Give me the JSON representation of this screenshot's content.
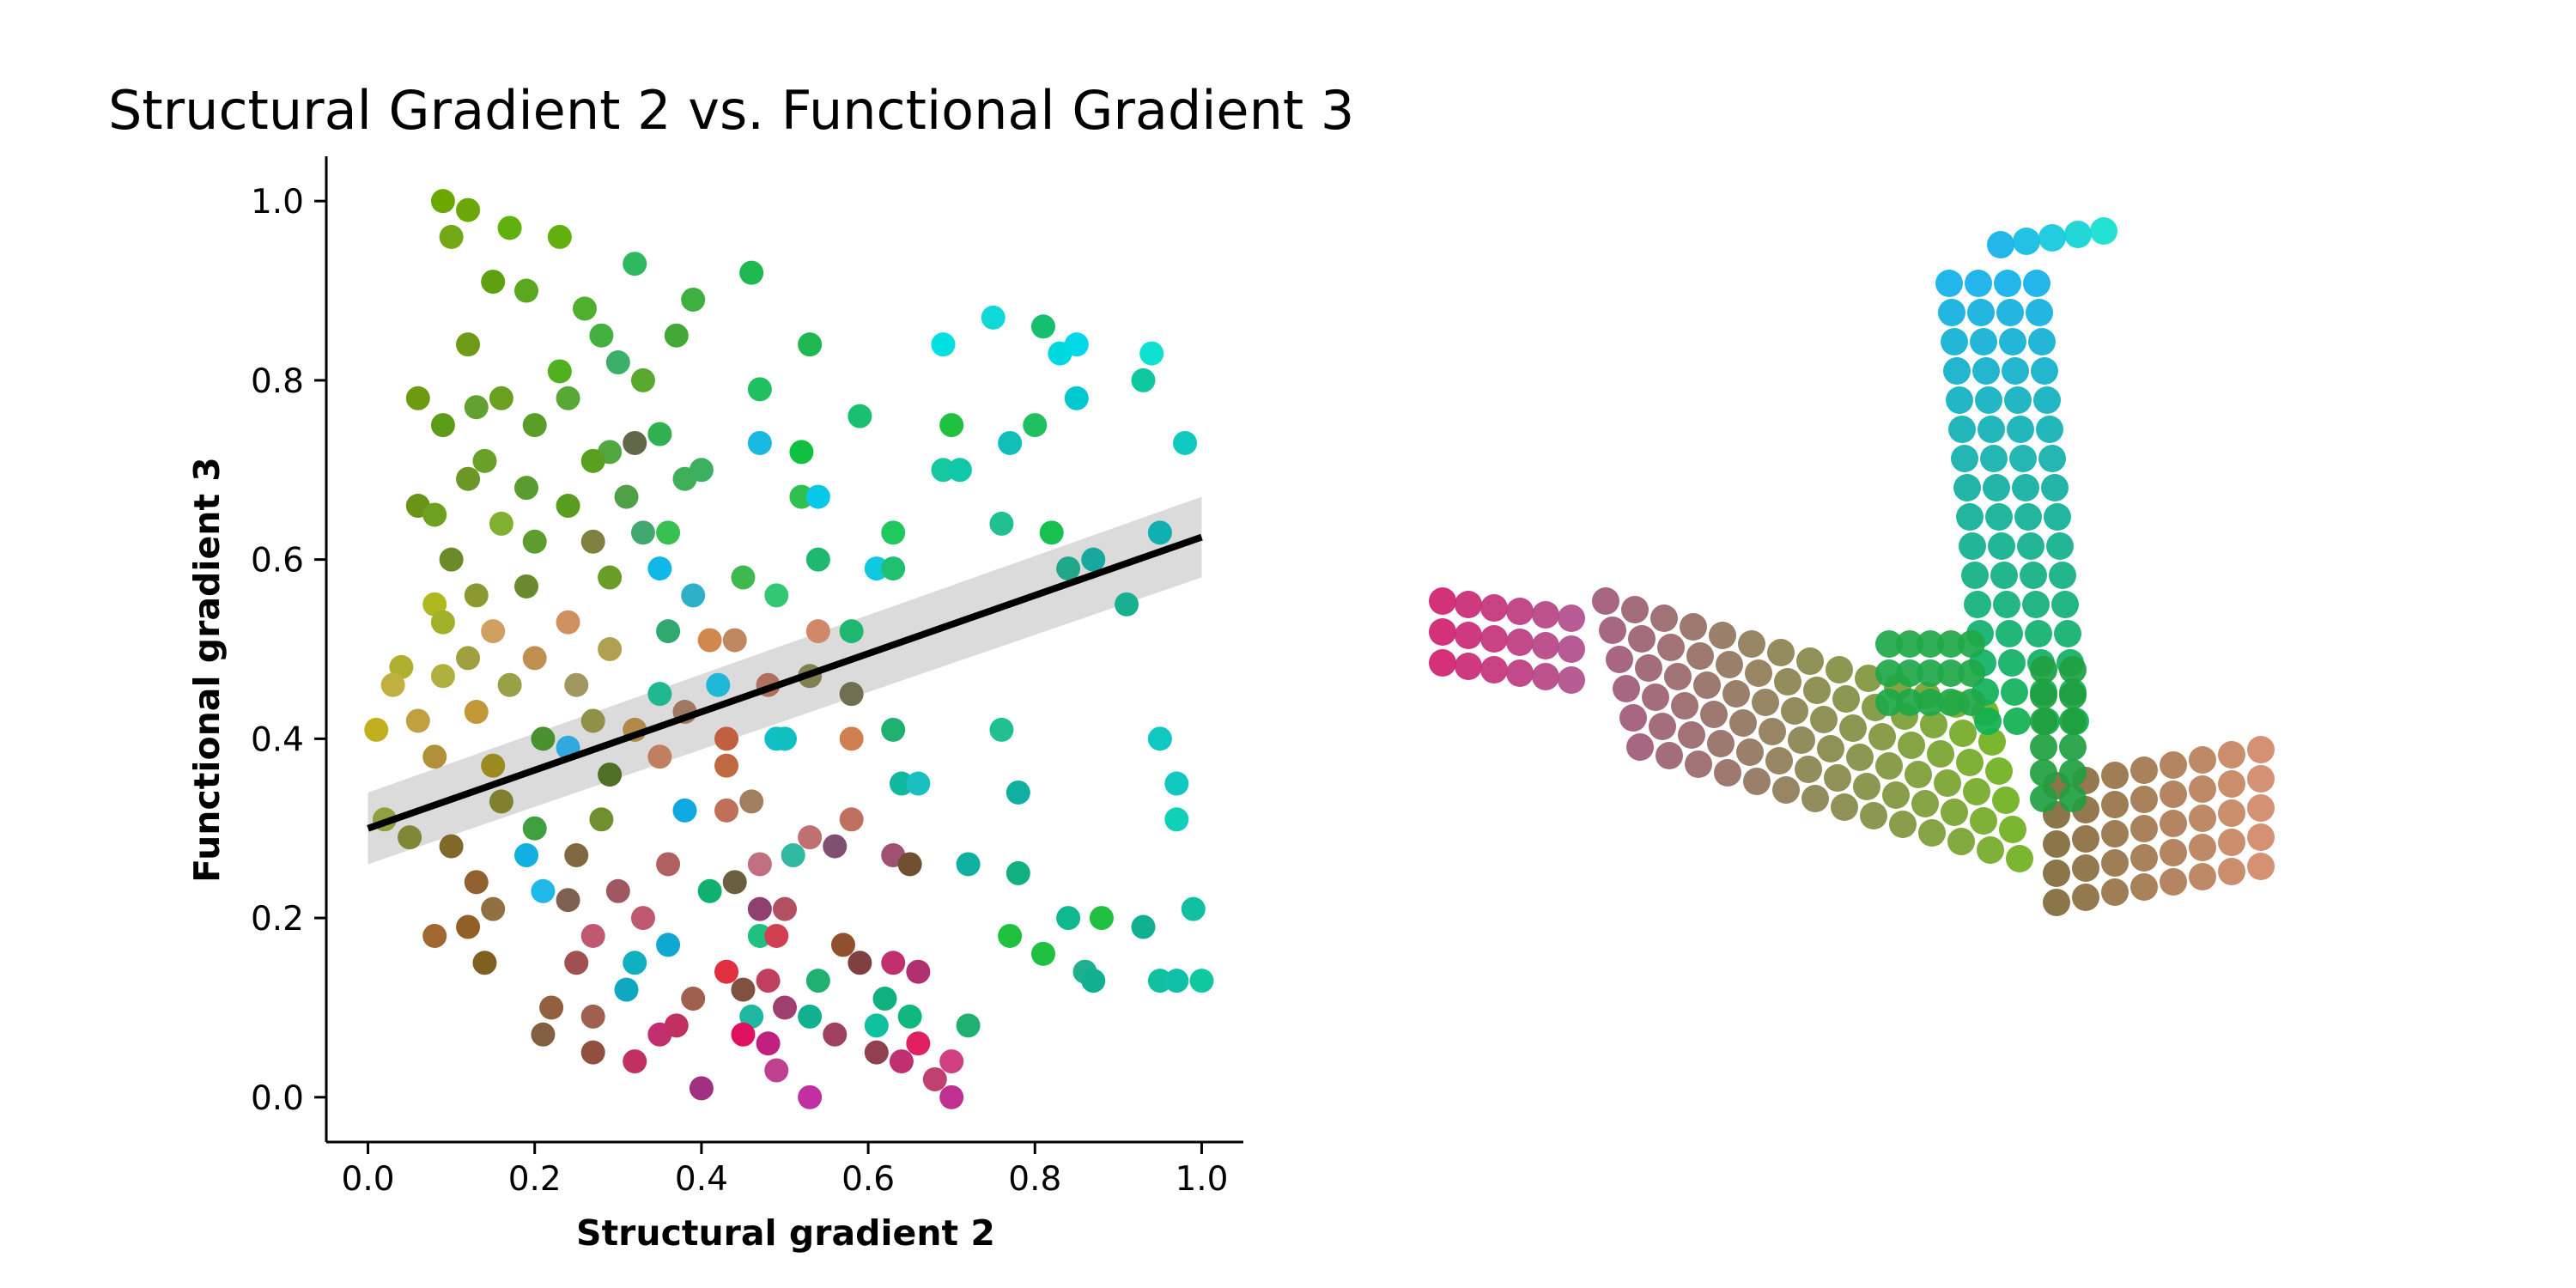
{
  "chart_data": [
    {
      "type": "scatter",
      "title": "Structural Gradient 2 vs. Functional Gradient 3",
      "xlabel": "Structural gradient 2",
      "ylabel": "Functional gradient 3",
      "xlim": [
        -0.05,
        1.05
      ],
      "ylim": [
        -0.05,
        1.05
      ],
      "x_ticks": [
        "0.0",
        "0.2",
        "0.4",
        "0.6",
        "0.8",
        "1.0"
      ],
      "y_ticks": [
        "0.0",
        "0.2",
        "0.4",
        "0.6",
        "0.8",
        "1.0"
      ],
      "grid": false,
      "legend": "none",
      "regression_line": {
        "x": [
          0,
          1
        ],
        "y": [
          0.3,
          0.625
        ],
        "color": "#000000"
      },
      "confidence_band": {
        "x": [
          0,
          1
        ],
        "lower": [
          0.26,
          0.58
        ],
        "upper": [
          0.34,
          0.67
        ],
        "color": "#d9d9d9"
      },
      "points": [
        {
          "x": 0.09,
          "y": 1.0,
          "c": "#6aa800"
        },
        {
          "x": 0.12,
          "y": 0.99,
          "c": "#6aa80a"
        },
        {
          "x": 0.23,
          "y": 0.96,
          "c": "#62b010"
        },
        {
          "x": 0.17,
          "y": 0.97,
          "c": "#60b010"
        },
        {
          "x": 0.1,
          "y": 0.96,
          "c": "#72a818"
        },
        {
          "x": 0.32,
          "y": 0.93,
          "c": "#30b860"
        },
        {
          "x": 0.46,
          "y": 0.92,
          "c": "#20b850"
        },
        {
          "x": 0.15,
          "y": 0.91,
          "c": "#5ea010"
        },
        {
          "x": 0.19,
          "y": 0.9,
          "c": "#5aa820"
        },
        {
          "x": 0.39,
          "y": 0.89,
          "c": "#3db040"
        },
        {
          "x": 0.26,
          "y": 0.88,
          "c": "#4fb030"
        },
        {
          "x": 0.28,
          "y": 0.85,
          "c": "#44b040"
        },
        {
          "x": 0.12,
          "y": 0.84,
          "c": "#6f9a18"
        },
        {
          "x": 0.37,
          "y": 0.85,
          "c": "#44a838"
        },
        {
          "x": 0.53,
          "y": 0.84,
          "c": "#20b850"
        },
        {
          "x": 0.69,
          "y": 0.84,
          "c": "#00e0e0"
        },
        {
          "x": 0.75,
          "y": 0.87,
          "c": "#10d8d8"
        },
        {
          "x": 0.81,
          "y": 0.86,
          "c": "#14c070"
        },
        {
          "x": 0.83,
          "y": 0.83,
          "c": "#00d8e0"
        },
        {
          "x": 0.85,
          "y": 0.84,
          "c": "#00d8e8"
        },
        {
          "x": 0.94,
          "y": 0.83,
          "c": "#10e0d0"
        },
        {
          "x": 0.23,
          "y": 0.81,
          "c": "#50b020"
        },
        {
          "x": 0.3,
          "y": 0.82,
          "c": "#3cb068"
        },
        {
          "x": 0.33,
          "y": 0.8,
          "c": "#5aa830"
        },
        {
          "x": 0.47,
          "y": 0.79,
          "c": "#20c060"
        },
        {
          "x": 0.06,
          "y": 0.78,
          "c": "#6d9a10"
        },
        {
          "x": 0.16,
          "y": 0.78,
          "c": "#6aa020"
        },
        {
          "x": 0.24,
          "y": 0.78,
          "c": "#58a838"
        },
        {
          "x": 0.13,
          "y": 0.77,
          "c": "#62a030"
        },
        {
          "x": 0.59,
          "y": 0.76,
          "c": "#18c070"
        },
        {
          "x": 0.85,
          "y": 0.78,
          "c": "#00c8d0"
        },
        {
          "x": 0.93,
          "y": 0.8,
          "c": "#10c8a0"
        },
        {
          "x": 0.09,
          "y": 0.75,
          "c": "#5c9c18"
        },
        {
          "x": 0.2,
          "y": 0.75,
          "c": "#5a9e28"
        },
        {
          "x": 0.7,
          "y": 0.75,
          "c": "#20c040"
        },
        {
          "x": 0.77,
          "y": 0.73,
          "c": "#10c0b8"
        },
        {
          "x": 0.8,
          "y": 0.75,
          "c": "#20c060"
        },
        {
          "x": 0.98,
          "y": 0.73,
          "c": "#10c8c0"
        },
        {
          "x": 0.29,
          "y": 0.72,
          "c": "#52a840"
        },
        {
          "x": 0.32,
          "y": 0.73,
          "c": "#606848"
        },
        {
          "x": 0.35,
          "y": 0.74,
          "c": "#30b050"
        },
        {
          "x": 0.47,
          "y": 0.73,
          "c": "#18b8e0"
        },
        {
          "x": 0.52,
          "y": 0.72,
          "c": "#10c040"
        },
        {
          "x": 0.14,
          "y": 0.71,
          "c": "#68a028"
        },
        {
          "x": 0.27,
          "y": 0.71,
          "c": "#5aa020"
        },
        {
          "x": 0.69,
          "y": 0.7,
          "c": "#18c8a0"
        },
        {
          "x": 0.71,
          "y": 0.7,
          "c": "#10c8a8"
        },
        {
          "x": 0.12,
          "y": 0.69,
          "c": "#6c9628"
        },
        {
          "x": 0.19,
          "y": 0.68,
          "c": "#5a9c30"
        },
        {
          "x": 0.38,
          "y": 0.69,
          "c": "#40b058"
        },
        {
          "x": 0.4,
          "y": 0.7,
          "c": "#3cb060"
        },
        {
          "x": 0.52,
          "y": 0.67,
          "c": "#30c050"
        },
        {
          "x": 0.54,
          "y": 0.67,
          "c": "#08c8e8"
        },
        {
          "x": 0.06,
          "y": 0.66,
          "c": "#6a9418"
        },
        {
          "x": 0.08,
          "y": 0.65,
          "c": "#70a020"
        },
        {
          "x": 0.24,
          "y": 0.66,
          "c": "#5a9c20"
        },
        {
          "x": 0.31,
          "y": 0.67,
          "c": "#50a048"
        },
        {
          "x": 0.16,
          "y": 0.64,
          "c": "#80b030"
        },
        {
          "x": 0.33,
          "y": 0.63,
          "c": "#40a870"
        },
        {
          "x": 0.36,
          "y": 0.63,
          "c": "#38c050"
        },
        {
          "x": 0.63,
          "y": 0.63,
          "c": "#20c860"
        },
        {
          "x": 0.76,
          "y": 0.64,
          "c": "#20c090"
        },
        {
          "x": 0.82,
          "y": 0.63,
          "c": "#18c050"
        },
        {
          "x": 0.95,
          "y": 0.63,
          "c": "#10b0b0"
        },
        {
          "x": 0.1,
          "y": 0.6,
          "c": "#6a8c28"
        },
        {
          "x": 0.2,
          "y": 0.62,
          "c": "#5e9c30"
        },
        {
          "x": 0.27,
          "y": 0.62,
          "c": "#808040"
        },
        {
          "x": 0.35,
          "y": 0.59,
          "c": "#10b8e8"
        },
        {
          "x": 0.54,
          "y": 0.6,
          "c": "#20b870"
        },
        {
          "x": 0.61,
          "y": 0.59,
          "c": "#10c8e0"
        },
        {
          "x": 0.63,
          "y": 0.59,
          "c": "#20c070"
        },
        {
          "x": 0.84,
          "y": 0.59,
          "c": "#20a888"
        },
        {
          "x": 0.87,
          "y": 0.6,
          "c": "#18a8a0"
        },
        {
          "x": 0.08,
          "y": 0.55,
          "c": "#b0b820"
        },
        {
          "x": 0.13,
          "y": 0.56,
          "c": "#8a9a30"
        },
        {
          "x": 0.19,
          "y": 0.57,
          "c": "#6a8a30"
        },
        {
          "x": 0.29,
          "y": 0.58,
          "c": "#6a9c28"
        },
        {
          "x": 0.39,
          "y": 0.56,
          "c": "#30b0c8"
        },
        {
          "x": 0.45,
          "y": 0.58,
          "c": "#40b850"
        },
        {
          "x": 0.49,
          "y": 0.56,
          "c": "#30c870"
        },
        {
          "x": 0.91,
          "y": 0.55,
          "c": "#18b090"
        },
        {
          "x": 0.09,
          "y": 0.53,
          "c": "#a0b028"
        },
        {
          "x": 0.15,
          "y": 0.52,
          "c": "#d0a060"
        },
        {
          "x": 0.24,
          "y": 0.53,
          "c": "#d09060"
        },
        {
          "x": 0.36,
          "y": 0.52,
          "c": "#30a870"
        },
        {
          "x": 0.58,
          "y": 0.52,
          "c": "#20b870"
        },
        {
          "x": 0.04,
          "y": 0.48,
          "c": "#b0b030"
        },
        {
          "x": 0.12,
          "y": 0.49,
          "c": "#a0a040"
        },
        {
          "x": 0.2,
          "y": 0.49,
          "c": "#c09050"
        },
        {
          "x": 0.29,
          "y": 0.5,
          "c": "#b0a050"
        },
        {
          "x": 0.41,
          "y": 0.51,
          "c": "#d08850"
        },
        {
          "x": 0.44,
          "y": 0.51,
          "c": "#c08860"
        },
        {
          "x": 0.54,
          "y": 0.52,
          "c": "#d08868"
        },
        {
          "x": 0.03,
          "y": 0.46,
          "c": "#c0b040"
        },
        {
          "x": 0.09,
          "y": 0.47,
          "c": "#b0b040"
        },
        {
          "x": 0.17,
          "y": 0.46,
          "c": "#9aa048"
        },
        {
          "x": 0.25,
          "y": 0.46,
          "c": "#a09860"
        },
        {
          "x": 0.35,
          "y": 0.45,
          "c": "#20b890"
        },
        {
          "x": 0.42,
          "y": 0.46,
          "c": "#20b8d8"
        },
        {
          "x": 0.48,
          "y": 0.46,
          "c": "#b07060"
        },
        {
          "x": 0.53,
          "y": 0.47,
          "c": "#808050"
        },
        {
          "x": 0.58,
          "y": 0.45,
          "c": "#707050"
        },
        {
          "x": 0.01,
          "y": 0.41,
          "c": "#c0b020"
        },
        {
          "x": 0.06,
          "y": 0.42,
          "c": "#c0a040"
        },
        {
          "x": 0.13,
          "y": 0.43,
          "c": "#c09838"
        },
        {
          "x": 0.21,
          "y": 0.4,
          "c": "#4a9030"
        },
        {
          "x": 0.27,
          "y": 0.42,
          "c": "#909048"
        },
        {
          "x": 0.32,
          "y": 0.41,
          "c": "#b08848"
        },
        {
          "x": 0.38,
          "y": 0.43,
          "c": "#a07860"
        },
        {
          "x": 0.43,
          "y": 0.4,
          "c": "#c06040"
        },
        {
          "x": 0.49,
          "y": 0.4,
          "c": "#10c0c8"
        },
        {
          "x": 0.5,
          "y": 0.4,
          "c": "#10c0c0"
        },
        {
          "x": 0.58,
          "y": 0.4,
          "c": "#d08050"
        },
        {
          "x": 0.63,
          "y": 0.41,
          "c": "#20b070"
        },
        {
          "x": 0.76,
          "y": 0.41,
          "c": "#20c090"
        },
        {
          "x": 0.95,
          "y": 0.4,
          "c": "#10c8c0"
        },
        {
          "x": 0.08,
          "y": 0.38,
          "c": "#b09038"
        },
        {
          "x": 0.15,
          "y": 0.37,
          "c": "#9a8a20"
        },
        {
          "x": 0.24,
          "y": 0.39,
          "c": "#30a8e0"
        },
        {
          "x": 0.29,
          "y": 0.36,
          "c": "#507028"
        },
        {
          "x": 0.35,
          "y": 0.38,
          "c": "#c08060"
        },
        {
          "x": 0.43,
          "y": 0.37,
          "c": "#c06840"
        },
        {
          "x": 0.64,
          "y": 0.35,
          "c": "#10b8a0"
        },
        {
          "x": 0.66,
          "y": 0.35,
          "c": "#18c0c0"
        },
        {
          "x": 0.78,
          "y": 0.34,
          "c": "#10b0a0"
        },
        {
          "x": 0.97,
          "y": 0.35,
          "c": "#10c8c0"
        },
        {
          "x": 0.02,
          "y": 0.31,
          "c": "#90a040"
        },
        {
          "x": 0.05,
          "y": 0.29,
          "c": "#808838"
        },
        {
          "x": 0.16,
          "y": 0.33,
          "c": "#808030"
        },
        {
          "x": 0.2,
          "y": 0.3,
          "c": "#40a040"
        },
        {
          "x": 0.28,
          "y": 0.31,
          "c": "#709030"
        },
        {
          "x": 0.38,
          "y": 0.32,
          "c": "#10a8e0"
        },
        {
          "x": 0.43,
          "y": 0.32,
          "c": "#c07058"
        },
        {
          "x": 0.46,
          "y": 0.33,
          "c": "#a08060"
        },
        {
          "x": 0.53,
          "y": 0.29,
          "c": "#c07070"
        },
        {
          "x": 0.58,
          "y": 0.31,
          "c": "#c07060"
        },
        {
          "x": 0.97,
          "y": 0.31,
          "c": "#10d0b8"
        },
        {
          "x": 0.1,
          "y": 0.28,
          "c": "#806828"
        },
        {
          "x": 0.19,
          "y": 0.27,
          "c": "#10b0e0"
        },
        {
          "x": 0.25,
          "y": 0.27,
          "c": "#806840"
        },
        {
          "x": 0.36,
          "y": 0.26,
          "c": "#b06060"
        },
        {
          "x": 0.47,
          "y": 0.26,
          "c": "#c07080"
        },
        {
          "x": 0.51,
          "y": 0.27,
          "c": "#30b8a0"
        },
        {
          "x": 0.56,
          "y": 0.28,
          "c": "#805070"
        },
        {
          "x": 0.63,
          "y": 0.27,
          "c": "#a05070"
        },
        {
          "x": 0.65,
          "y": 0.26,
          "c": "#705030"
        },
        {
          "x": 0.72,
          "y": 0.26,
          "c": "#10b0a0"
        },
        {
          "x": 0.78,
          "y": 0.25,
          "c": "#10b080"
        },
        {
          "x": 0.13,
          "y": 0.24,
          "c": "#906030"
        },
        {
          "x": 0.21,
          "y": 0.23,
          "c": "#20b8e8"
        },
        {
          "x": 0.3,
          "y": 0.23,
          "c": "#a05860"
        },
        {
          "x": 0.41,
          "y": 0.23,
          "c": "#10b070"
        },
        {
          "x": 0.44,
          "y": 0.24,
          "c": "#6a6040"
        },
        {
          "x": 0.15,
          "y": 0.21,
          "c": "#907040"
        },
        {
          "x": 0.24,
          "y": 0.22,
          "c": "#806050"
        },
        {
          "x": 0.33,
          "y": 0.2,
          "c": "#c05870"
        },
        {
          "x": 0.47,
          "y": 0.21,
          "c": "#904070"
        },
        {
          "x": 0.5,
          "y": 0.21,
          "c": "#b05060"
        },
        {
          "x": 0.84,
          "y": 0.2,
          "c": "#10b890"
        },
        {
          "x": 0.88,
          "y": 0.2,
          "c": "#20c040"
        },
        {
          "x": 0.93,
          "y": 0.19,
          "c": "#10b090"
        },
        {
          "x": 0.99,
          "y": 0.21,
          "c": "#10c0a0"
        },
        {
          "x": 0.08,
          "y": 0.18,
          "c": "#a06830"
        },
        {
          "x": 0.12,
          "y": 0.19,
          "c": "#906028"
        },
        {
          "x": 0.27,
          "y": 0.18,
          "c": "#c05870"
        },
        {
          "x": 0.36,
          "y": 0.17,
          "c": "#10a8d0"
        },
        {
          "x": 0.47,
          "y": 0.18,
          "c": "#20c080"
        },
        {
          "x": 0.49,
          "y": 0.18,
          "c": "#d04050"
        },
        {
          "x": 0.57,
          "y": 0.17,
          "c": "#905030"
        },
        {
          "x": 0.77,
          "y": 0.18,
          "c": "#20c040"
        },
        {
          "x": 0.14,
          "y": 0.15,
          "c": "#806020"
        },
        {
          "x": 0.25,
          "y": 0.15,
          "c": "#a05050"
        },
        {
          "x": 0.32,
          "y": 0.15,
          "c": "#10b0c0"
        },
        {
          "x": 0.43,
          "y": 0.14,
          "c": "#e03040"
        },
        {
          "x": 0.48,
          "y": 0.13,
          "c": "#c04060"
        },
        {
          "x": 0.59,
          "y": 0.15,
          "c": "#804040"
        },
        {
          "x": 0.63,
          "y": 0.15,
          "c": "#c03070"
        },
        {
          "x": 0.81,
          "y": 0.16,
          "c": "#20c040"
        },
        {
          "x": 0.86,
          "y": 0.14,
          "c": "#20b090"
        },
        {
          "x": 0.95,
          "y": 0.13,
          "c": "#10c0a0"
        },
        {
          "x": 0.97,
          "y": 0.13,
          "c": "#10c0a8"
        },
        {
          "x": 1.0,
          "y": 0.13,
          "c": "#10c8a0"
        },
        {
          "x": 0.22,
          "y": 0.1,
          "c": "#906040"
        },
        {
          "x": 0.31,
          "y": 0.12,
          "c": "#10a8c0"
        },
        {
          "x": 0.39,
          "y": 0.11,
          "c": "#a06050"
        },
        {
          "x": 0.45,
          "y": 0.12,
          "c": "#805040"
        },
        {
          "x": 0.54,
          "y": 0.13,
          "c": "#20b070"
        },
        {
          "x": 0.62,
          "y": 0.11,
          "c": "#10b080"
        },
        {
          "x": 0.66,
          "y": 0.14,
          "c": "#b03070"
        },
        {
          "x": 0.87,
          "y": 0.13,
          "c": "#10b090"
        },
        {
          "x": 0.21,
          "y": 0.07,
          "c": "#806040"
        },
        {
          "x": 0.27,
          "y": 0.09,
          "c": "#a06050"
        },
        {
          "x": 0.35,
          "y": 0.07,
          "c": "#c03070"
        },
        {
          "x": 0.37,
          "y": 0.08,
          "c": "#c03060"
        },
        {
          "x": 0.46,
          "y": 0.09,
          "c": "#20b8a0"
        },
        {
          "x": 0.5,
          "y": 0.1,
          "c": "#a04070"
        },
        {
          "x": 0.53,
          "y": 0.09,
          "c": "#10b090"
        },
        {
          "x": 0.61,
          "y": 0.08,
          "c": "#10c0a0"
        },
        {
          "x": 0.65,
          "y": 0.09,
          "c": "#10b880"
        },
        {
          "x": 0.72,
          "y": 0.08,
          "c": "#20b070"
        },
        {
          "x": 0.27,
          "y": 0.05,
          "c": "#905040"
        },
        {
          "x": 0.32,
          "y": 0.04,
          "c": "#c03060"
        },
        {
          "x": 0.45,
          "y": 0.07,
          "c": "#e01060"
        },
        {
          "x": 0.48,
          "y": 0.06,
          "c": "#c02080"
        },
        {
          "x": 0.56,
          "y": 0.07,
          "c": "#a04060"
        },
        {
          "x": 0.61,
          "y": 0.05,
          "c": "#904050"
        },
        {
          "x": 0.64,
          "y": 0.04,
          "c": "#c03070"
        },
        {
          "x": 0.66,
          "y": 0.06,
          "c": "#e02060"
        },
        {
          "x": 0.7,
          "y": 0.04,
          "c": "#d04080"
        },
        {
          "x": 0.4,
          "y": 0.01,
          "c": "#a03080"
        },
        {
          "x": 0.49,
          "y": 0.03,
          "c": "#c04090"
        },
        {
          "x": 0.53,
          "y": 0.0,
          "c": "#c030a0"
        },
        {
          "x": 0.68,
          "y": 0.02,
          "c": "#c04070"
        },
        {
          "x": 0.7,
          "y": 0.0,
          "c": "#c03090"
        }
      ]
    }
  ]
}
